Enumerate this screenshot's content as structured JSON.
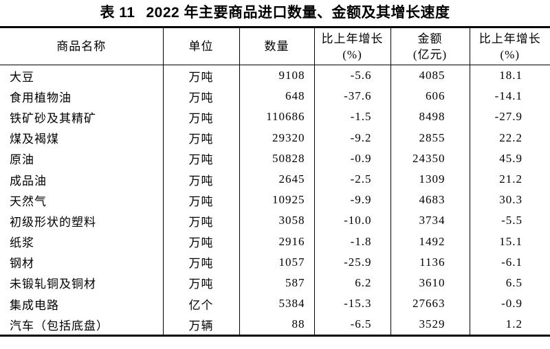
{
  "page": {
    "background": "#ffffff",
    "text_color": "#000000",
    "rule_color": "#000000"
  },
  "title": {
    "prefix": "表 11",
    "text": "2022 年主要商品进口数量、金额及其增长速度"
  },
  "table": {
    "columns": [
      {
        "key": "name",
        "header": "商品名称"
      },
      {
        "key": "unit",
        "header": "单位"
      },
      {
        "key": "quantity",
        "header": "数量"
      },
      {
        "key": "quantity_growth",
        "header": "比上年增长",
        "header_line2": "(%)"
      },
      {
        "key": "amount",
        "header": "金额",
        "header_line2": "(亿元)"
      },
      {
        "key": "amount_growth",
        "header": "比上年增长",
        "header_line2": "(%)"
      }
    ],
    "rows": [
      {
        "name": "大豆",
        "unit": "万吨",
        "quantity": "9108",
        "quantity_growth": "-5.6",
        "amount": "4085",
        "amount_growth": "18.1"
      },
      {
        "name": "食用植物油",
        "unit": "万吨",
        "quantity": "648",
        "quantity_growth": "-37.6",
        "amount": "606",
        "amount_growth": "-14.1"
      },
      {
        "name": "铁矿砂及其精矿",
        "unit": "万吨",
        "quantity": "110686",
        "quantity_growth": "-1.5",
        "amount": "8498",
        "amount_growth": "-27.9"
      },
      {
        "name": "煤及褐煤",
        "unit": "万吨",
        "quantity": "29320",
        "quantity_growth": "-9.2",
        "amount": "2855",
        "amount_growth": "22.2"
      },
      {
        "name": "原油",
        "unit": "万吨",
        "quantity": "50828",
        "quantity_growth": "-0.9",
        "amount": "24350",
        "amount_growth": "45.9"
      },
      {
        "name": "成品油",
        "unit": "万吨",
        "quantity": "2645",
        "quantity_growth": "-2.5",
        "amount": "1309",
        "amount_growth": "21.2"
      },
      {
        "name": "天然气",
        "unit": "万吨",
        "quantity": "10925",
        "quantity_growth": "-9.9",
        "amount": "4683",
        "amount_growth": "30.3"
      },
      {
        "name": "初级形状的塑料",
        "unit": "万吨",
        "quantity": "3058",
        "quantity_growth": "-10.0",
        "amount": "3734",
        "amount_growth": "-5.5"
      },
      {
        "name": "纸浆",
        "unit": "万吨",
        "quantity": "2916",
        "quantity_growth": "-1.8",
        "amount": "1492",
        "amount_growth": "15.1"
      },
      {
        "name": "钢材",
        "unit": "万吨",
        "quantity": "1057",
        "quantity_growth": "-25.9",
        "amount": "1136",
        "amount_growth": "-6.1"
      },
      {
        "name": "未锻轧铜及铜材",
        "unit": "万吨",
        "quantity": "587",
        "quantity_growth": "6.2",
        "amount": "3610",
        "amount_growth": "6.5"
      },
      {
        "name": "集成电路",
        "unit": "亿个",
        "quantity": "5384",
        "quantity_growth": "-15.3",
        "amount": "27663",
        "amount_growth": "-0.9"
      },
      {
        "name": "汽车（包括底盘）",
        "unit": "万辆",
        "quantity": "88",
        "quantity_growth": "-6.5",
        "amount": "3529",
        "amount_growth": "1.2"
      }
    ]
  }
}
